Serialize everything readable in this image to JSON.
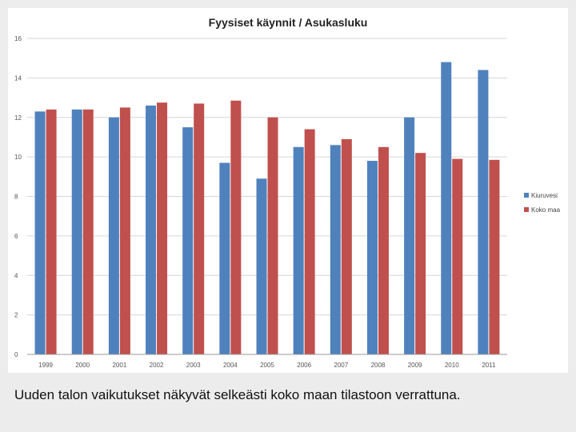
{
  "caption": "Uuden talon vaikutukset näkyvät selkeästi koko maan tilastoon verrattuna.",
  "chart_data": {
    "type": "bar",
    "title": "Fyysiset käynnit / Asukasluku",
    "xlabel": "",
    "ylabel": "",
    "ylim": [
      0,
      16
    ],
    "yticks": [
      0,
      2,
      4,
      6,
      8,
      10,
      12,
      14,
      16
    ],
    "grid": true,
    "legend_position": "right",
    "categories": [
      "1999",
      "2000",
      "2001",
      "2002",
      "2003",
      "2004",
      "2005",
      "2006",
      "2007",
      "2008",
      "2009",
      "2010",
      "2011"
    ],
    "series": [
      {
        "name": "Kiuruvesi",
        "color": "#4f81bd",
        "values": [
          12.3,
          12.4,
          12.0,
          12.6,
          11.5,
          9.7,
          8.9,
          10.5,
          10.6,
          9.8,
          12.0,
          14.8,
          14.4
        ]
      },
      {
        "name": "Koko maa",
        "color": "#c0504d",
        "values": [
          12.4,
          12.4,
          12.5,
          12.75,
          12.7,
          12.85,
          12.0,
          11.4,
          10.9,
          10.5,
          10.2,
          9.9,
          9.85
        ]
      }
    ]
  }
}
